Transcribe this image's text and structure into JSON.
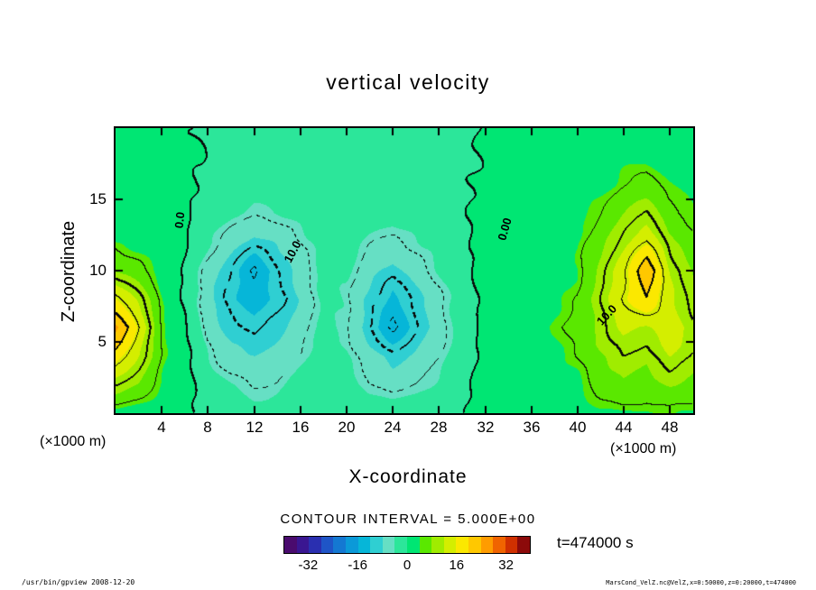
{
  "title": "vertical velocity",
  "axes": {
    "x_label": "X-coordinate",
    "y_label": "Z-coordinate",
    "y_unit": "(×1000 m)",
    "x_unit": "(×1000 m)"
  },
  "contour_labels": [
    {
      "text": "0.0"
    },
    {
      "text": "10.0"
    },
    {
      "text": "0.00"
    },
    {
      "text": "10.0"
    }
  ],
  "annotations": {
    "contour_interval": "CONTOUR INTERVAL = 5.000E+00",
    "time": "t=474000 s"
  },
  "footer": {
    "left": "/usr/bin/gpview  2008-12-20",
    "right": "MarsCond_VelZ.nc@VelZ,x=0:50000,z=0:20000,t=474000"
  },
  "chart_data": {
    "type": "heatmap",
    "title": "vertical velocity",
    "xlabel": "X-coordinate",
    "ylabel": "Z-coordinate",
    "x_unit": "×1000 m",
    "z_unit": "×1000 m",
    "x_range": [
      0,
      50
    ],
    "z_range": [
      0,
      20
    ],
    "x_ticks": [
      4,
      8,
      12,
      16,
      20,
      24,
      28,
      32,
      36,
      40,
      44,
      48
    ],
    "z_ticks": [
      5,
      10,
      15
    ],
    "contour_interval": 5.0,
    "labeled_contour_values": [
      0.0,
      10.0,
      0.0,
      10.0
    ],
    "time_seconds": 474000,
    "x": [
      0,
      2,
      4,
      6,
      8,
      10,
      12,
      14,
      16,
      18,
      20,
      22,
      24,
      26,
      28,
      30,
      32,
      34,
      36,
      38,
      40,
      42,
      44,
      46,
      48,
      50
    ],
    "z": [
      0,
      2,
      4,
      6,
      8,
      10,
      12,
      14,
      16,
      18,
      20
    ],
    "grid_values": [
      [
        3,
        2.5,
        2,
        0.5,
        -1,
        -2,
        -2.5,
        -2,
        -1.5,
        -1,
        -1.5,
        -2,
        -2.5,
        -2,
        -1.5,
        -0.5,
        1,
        2.5,
        2,
        1.5,
        2.5,
        3.5,
        4,
        3.5,
        4,
        3.5
      ],
      [
        10,
        8,
        4,
        1,
        -2,
        -4,
        -5.5,
        -5,
        -3,
        -1.5,
        -2.5,
        -5,
        -6,
        -5,
        -3.5,
        -1,
        1.5,
        4,
        3,
        2.5,
        3.5,
        6,
        8,
        7,
        8,
        7
      ],
      [
        18,
        12,
        5,
        1,
        -4,
        -7,
        -8,
        -7,
        -5,
        -2.5,
        -3.5,
        -7,
        -9,
        -7.5,
        -5,
        -2,
        1,
        3,
        2,
        3,
        5,
        8,
        10,
        9,
        12,
        10
      ],
      [
        25,
        15,
        5,
        0.5,
        -6,
        -9,
        -11,
        -9,
        -6.5,
        -3.5,
        -4.5,
        -10,
        -16,
        -10,
        -6.5,
        -2,
        1,
        3,
        2,
        4,
        6,
        9,
        13,
        12,
        14,
        11
      ],
      [
        16,
        11,
        4,
        -0.5,
        -7,
        -11,
        -14,
        -11,
        -7.5,
        -3.5,
        -4.5,
        -9,
        -13,
        -9,
        -6,
        -2,
        1,
        2,
        1,
        3,
        5,
        10,
        15,
        20,
        13,
        9
      ],
      [
        8,
        6,
        3,
        -0.5,
        -6,
        -10,
        -16,
        -10,
        -6.5,
        -3,
        -3.5,
        -7,
        -9,
        -6.5,
        -4,
        -1.5,
        2,
        2,
        1,
        2,
        4,
        9,
        14,
        24,
        12,
        8
      ],
      [
        4,
        3,
        2,
        0.5,
        -3.5,
        -7,
        -9,
        -7.5,
        -5,
        -2.5,
        -2.5,
        -4.5,
        -5.5,
        -4.5,
        -3,
        -1,
        1,
        1.5,
        1,
        2,
        4,
        7,
        11,
        15,
        9,
        6
      ],
      [
        2,
        2,
        1.5,
        0.5,
        -2,
        -3.5,
        -4.5,
        -4,
        -3,
        -1.5,
        -1.5,
        -2.5,
        -3,
        -2.5,
        -2,
        -0.6,
        1,
        1.2,
        0.8,
        1,
        3,
        5,
        8,
        10,
        6,
        4
      ],
      [
        1.5,
        1.5,
        1,
        0.4,
        -0.9,
        -1.6,
        -2.2,
        -2,
        -1.5,
        -1,
        -1,
        -1.3,
        -1.6,
        -1.3,
        -1,
        -0.5,
        0.5,
        0.9,
        0.7,
        1,
        2,
        3,
        5,
        6,
        4,
        3
      ],
      [
        1.2,
        1.2,
        1,
        0.5,
        -0.5,
        -0.9,
        -1.2,
        -1.2,
        -1,
        -0.8,
        -0.7,
        -0.8,
        -0.9,
        -0.8,
        -0.7,
        -0.5,
        0.5,
        0.8,
        0.7,
        1,
        1.3,
        2,
        3,
        3,
        2.5,
        2
      ],
      [
        1,
        1,
        0.8,
        0.4,
        -0.5,
        -0.7,
        -0.8,
        -0.8,
        -0.7,
        -0.6,
        -0.6,
        -0.6,
        -0.7,
        -0.6,
        -0.5,
        -0.4,
        0.5,
        0.8,
        0.8,
        1,
        1.2,
        1.5,
        2,
        2,
        1.8,
        1.5
      ]
    ],
    "colorbar": {
      "min": -40,
      "max": 40,
      "step": 4,
      "tick_values": [
        -32,
        -16,
        0,
        16,
        32
      ],
      "colors": [
        "#4a0b6e",
        "#3a1691",
        "#2a2fb0",
        "#1f55c7",
        "#1478d2",
        "#0b99d8",
        "#06b6d8",
        "#2fcfd2",
        "#66dfc4",
        "#2ce69a",
        "#00e673",
        "#5ae800",
        "#a0ec00",
        "#d4ee00",
        "#fbe800",
        "#ffc800",
        "#ff9c00",
        "#f06400",
        "#d03000",
        "#8c0a0a"
      ]
    }
  }
}
